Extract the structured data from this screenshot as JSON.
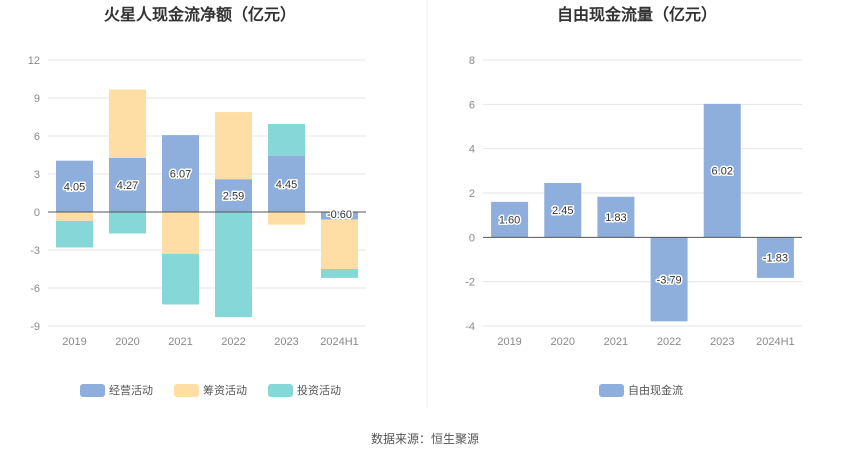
{
  "source": "数据来源：恒生聚源",
  "chart_data": [
    {
      "type": "bar",
      "stacked": true,
      "title": "火星人现金流净额（亿元）",
      "categories": [
        "2019",
        "2020",
        "2021",
        "2022",
        "2023",
        "2024H1"
      ],
      "ylim": [
        -9,
        12
      ],
      "yticks": [
        -9,
        -6,
        -3,
        0,
        3,
        6,
        9,
        12
      ],
      "grid": true,
      "legend_position": "bottom",
      "series": [
        {
          "name": "经营活动",
          "color": "#8eaedb",
          "values": [
            4.05,
            4.27,
            6.07,
            2.59,
            4.45,
            -0.6
          ],
          "labeled": true
        },
        {
          "name": "筹资活动",
          "color": "#fedea4",
          "values": [
            -0.7,
            5.4,
            -3.3,
            5.3,
            -1.0,
            -3.9
          ]
        },
        {
          "name": "投资活动",
          "color": "#86d7d8",
          "values": [
            -2.1,
            -1.7,
            -4.0,
            -8.3,
            2.5,
            -0.7
          ]
        }
      ]
    },
    {
      "type": "bar",
      "title": "自由现金流量（亿元）",
      "categories": [
        "2019",
        "2020",
        "2021",
        "2022",
        "2023",
        "2024H1"
      ],
      "ylim": [
        -4,
        8
      ],
      "yticks": [
        -4,
        -2,
        0,
        2,
        4,
        6,
        8
      ],
      "grid": true,
      "legend_position": "bottom",
      "series": [
        {
          "name": "自由现金流",
          "color": "#8eaedb",
          "values": [
            1.6,
            2.45,
            1.83,
            -3.79,
            6.02,
            -1.83
          ],
          "labeled": true
        }
      ]
    }
  ]
}
